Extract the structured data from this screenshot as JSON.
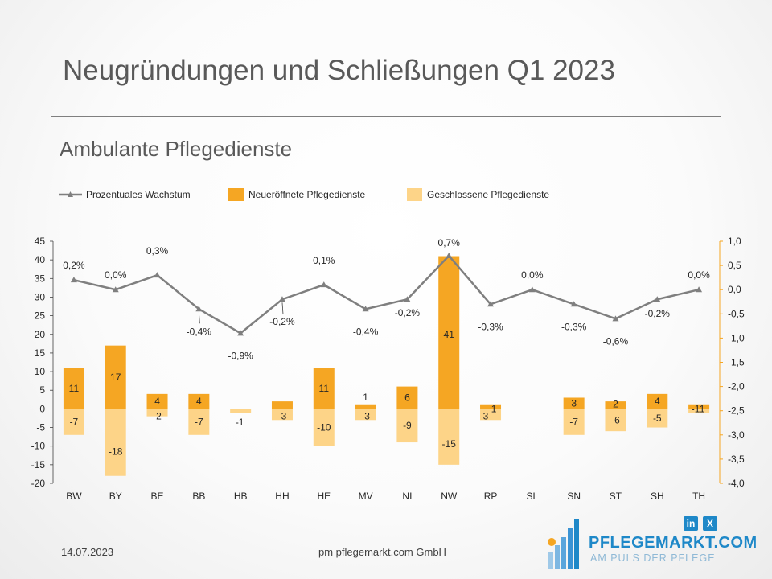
{
  "slide": {
    "title": "Neugründungen und Schließungen Q1 2023",
    "subtitle": "Ambulante Pflegedienste",
    "footer_date": "14.07.2023",
    "footer_company": "pm pflegemarkt.com GmbH",
    "logo_name": "PFLEGEMARKT.COM",
    "logo_tagline": "AM PULS DER PFLEGE",
    "social": [
      "in",
      "X"
    ]
  },
  "colors": {
    "new": "#f5a623",
    "closed": "#fdd488",
    "line": "#7f7f7f",
    "right_axis": "#f5a623",
    "logo": "#1e88c8"
  },
  "chart_data": {
    "type": "bar",
    "categories": [
      "BW",
      "BY",
      "BE",
      "BB",
      "HB",
      "HH",
      "HE",
      "MV",
      "NI",
      "NW",
      "RP",
      "SL",
      "SN",
      "ST",
      "SH",
      "TH"
    ],
    "series": [
      {
        "name": "Neueröffnete Pflegedienste",
        "values": [
          11,
          17,
          4,
          4,
          0,
          2,
          11,
          1,
          6,
          41,
          1,
          0,
          3,
          2,
          4,
          1
        ],
        "labels": [
          "11",
          "17",
          "4",
          "4",
          "",
          "",
          "11",
          "1",
          "6",
          "41",
          "1",
          "",
          "3",
          "2",
          "4",
          "1"
        ]
      },
      {
        "name": "Geschlossene Pflegedienste",
        "values": [
          -7,
          -18,
          -2,
          -7,
          -1,
          -3,
          -10,
          -3,
          -9,
          -15,
          -3,
          0,
          -7,
          -6,
          -5,
          -1
        ],
        "labels": [
          "-7",
          "-18",
          "-2",
          "-7",
          "-1",
          "-3",
          "-10",
          "-3",
          "-9",
          "-15",
          "-3",
          "",
          "-7",
          "-6",
          "-5",
          "-1"
        ]
      },
      {
        "name": "Prozentuales Wachstum",
        "values": [
          0.2,
          0.0,
          0.3,
          -0.4,
          -0.9,
          -0.2,
          0.1,
          -0.4,
          -0.2,
          0.7,
          -0.3,
          0.0,
          -0.3,
          -0.6,
          -0.2,
          0.0
        ],
        "labels": [
          "0,2%",
          "0,0%",
          "0,3%",
          "-0,4%",
          "-0,9%",
          "-0,2%",
          "0,1%",
          "-0,4%",
          "-0,2%",
          "0,7%",
          "-0,3%",
          "0,0%",
          "-0,3%",
          "-0,6%",
          "-0,2%",
          "0,0%"
        ]
      }
    ],
    "legend": [
      "Prozentuales Wachstum",
      "Neueröffnete Pflegedienste",
      "Geschlossene Pflegedienste"
    ],
    "legend_position": "top-left",
    "y_left": {
      "min": -20,
      "max": 45,
      "step": 5,
      "ticks": [
        "45",
        "40",
        "35",
        "30",
        "25",
        "20",
        "15",
        "10",
        "5",
        "0",
        "-5",
        "-10",
        "-15",
        "-20"
      ]
    },
    "y_right": {
      "min": -4.0,
      "max": 1.0,
      "step": 0.5,
      "ticks": [
        "1,0",
        "0,5",
        "0,0",
        "-0,5",
        "-1,0",
        "-1,5",
        "-2,0",
        "-2,5",
        "-3,0",
        "-3,5",
        "-4,0"
      ]
    },
    "grid": false
  }
}
